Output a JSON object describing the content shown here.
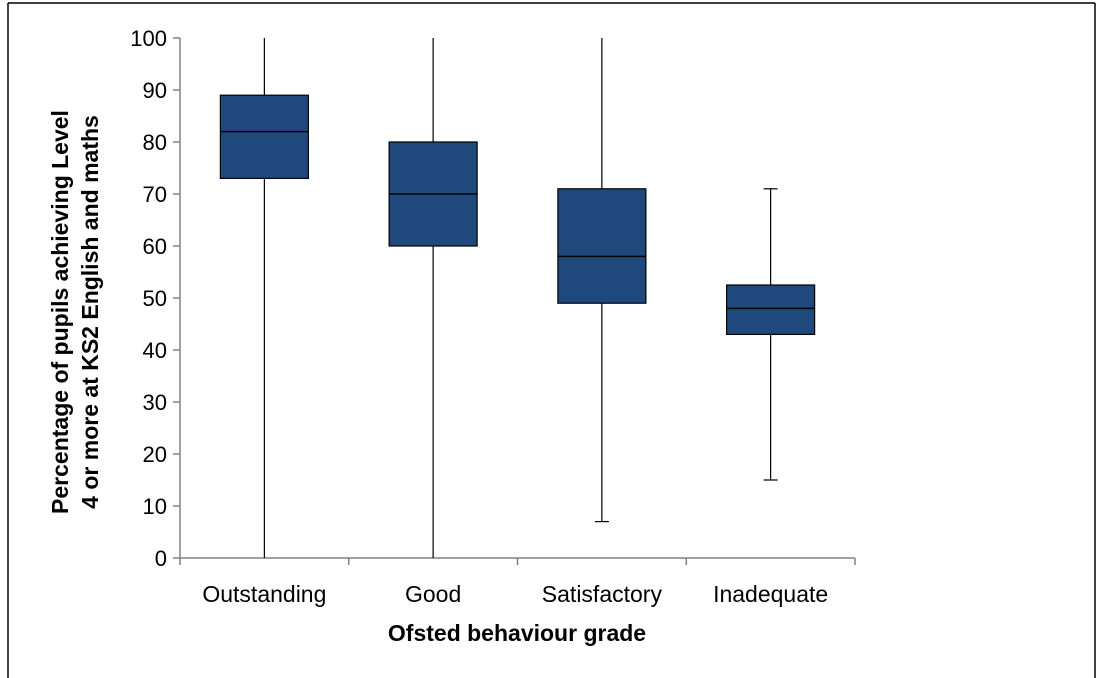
{
  "chart_data": {
    "type": "boxplot",
    "title": "",
    "xlabel": "Ofsted behaviour grade",
    "ylabel_lines": [
      "Percentage of pupils achieving Level",
      "4 or more at KS2 English and maths"
    ],
    "ylim": [
      0,
      100
    ],
    "yticks": [
      0,
      10,
      20,
      30,
      40,
      50,
      60,
      70,
      80,
      90,
      100
    ],
    "categories": [
      "Outstanding",
      "Good",
      "Satisfactory",
      "Inadequate"
    ],
    "boxes": [
      {
        "min": 0,
        "q1": 73,
        "median": 82,
        "q3": 89,
        "max": 100
      },
      {
        "min": 0,
        "q1": 60,
        "median": 70,
        "q3": 80,
        "max": 100
      },
      {
        "min": 7,
        "q1": 49,
        "median": 58,
        "q3": 71,
        "max": 100
      },
      {
        "min": 15,
        "q1": 43,
        "median": 48,
        "q3": 52.5,
        "max": 71
      }
    ],
    "box_color": "#1f497d",
    "grid": false,
    "legend": "none"
  }
}
